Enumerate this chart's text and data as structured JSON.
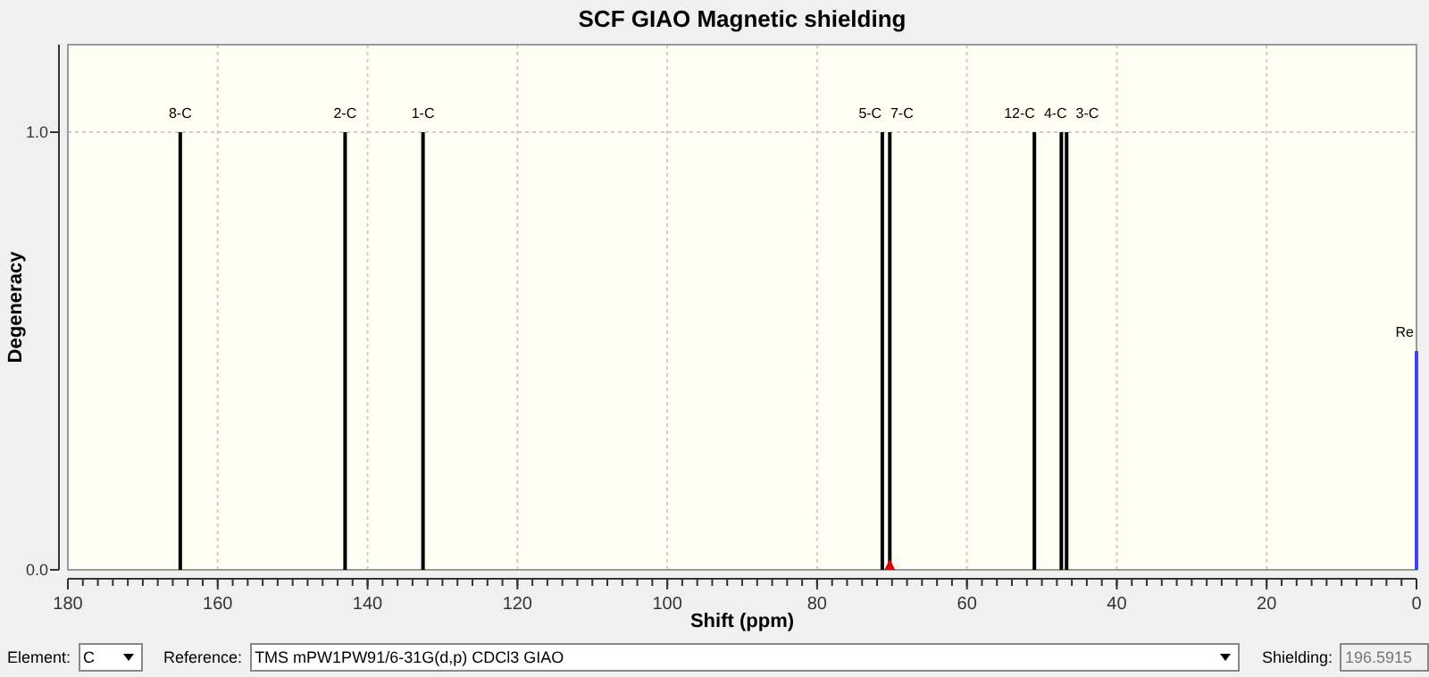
{
  "chart_data": {
    "type": "bar",
    "title": "SCF GIAO Magnetic shielding",
    "xlabel": "Shift (ppm)",
    "ylabel": "Degeneracy",
    "xlim": [
      180,
      0
    ],
    "xticks": [
      180,
      160,
      140,
      120,
      100,
      80,
      60,
      40,
      20,
      0
    ],
    "ylim": [
      0,
      1.2
    ],
    "yticks": [
      {
        "value": 0,
        "label": "0.0"
      },
      {
        "value": 1,
        "label": "1.0"
      }
    ],
    "grid": true,
    "series": [
      {
        "color": "#000000",
        "x": [
          165.0,
          143.0,
          132.6,
          71.3,
          70.3,
          51.0,
          47.4,
          46.7
        ],
        "values": [
          1,
          1,
          1,
          1,
          1,
          1,
          1,
          1
        ]
      },
      {
        "color": "#4040ff",
        "x": [
          0
        ],
        "values": [
          0.5
        ]
      }
    ],
    "annotations": [
      {
        "text": "8-C",
        "x": 165.0,
        "y": 1
      },
      {
        "text": "2-C",
        "x": 143.0,
        "y": 1
      },
      {
        "text": "1-C",
        "x": 132.6,
        "y": 1
      },
      {
        "text": "5-C",
        "x": 71.3,
        "y": 1
      },
      {
        "text": "7-C",
        "x": 70.3,
        "y": 1
      },
      {
        "text": "12-C",
        "x": 51.0,
        "y": 1
      },
      {
        "text": "4-C",
        "x": 47.4,
        "y": 1
      },
      {
        "text": "3-C",
        "x": 46.7,
        "y": 1
      },
      {
        "text": "Re",
        "x": 0,
        "y": 0.5
      },
      "Element:",
      "C",
      "Reference:",
      "TMS mPW1PW91/6-31G(d,p) CDCl3 GIAO",
      "Shielding:",
      "196.5915"
    ]
  }
}
